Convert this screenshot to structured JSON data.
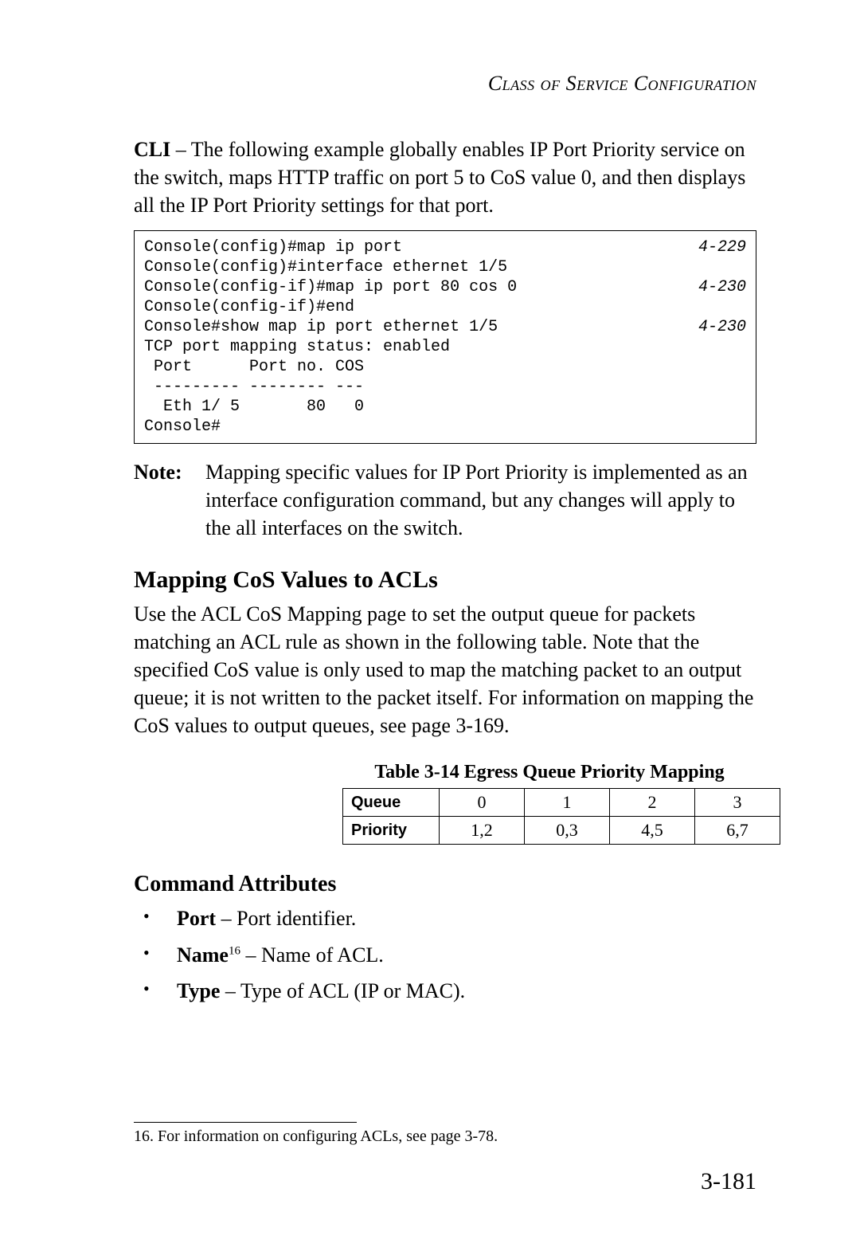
{
  "header": {
    "running_title": "Class of Service Configuration"
  },
  "cli": {
    "label": "CLI",
    "intro": " – The following example globally enables IP Port Priority service on the switch, maps HTTP traffic on port 5 to CoS value 0, and then displays all the IP Port Priority settings for that port."
  },
  "code": {
    "lines": [
      {
        "text": "Console(config)#map ip port",
        "ref": "4-229"
      },
      {
        "text": "Console(config)#interface ethernet 1/5",
        "ref": ""
      },
      {
        "text": "Console(config-if)#map ip port 80 cos 0",
        "ref": "4-230"
      },
      {
        "text": "Console(config-if)#end",
        "ref": ""
      },
      {
        "text": "Console#show map ip port ethernet 1/5",
        "ref": "4-230"
      },
      {
        "text": "TCP port mapping status: enabled",
        "ref": ""
      },
      {
        "text": "",
        "ref": ""
      },
      {
        "text": " Port      Port no. COS",
        "ref": ""
      },
      {
        "text": " --------- -------- ---",
        "ref": ""
      },
      {
        "text": "  Eth 1/ 5       80   0",
        "ref": ""
      },
      {
        "text": "Console#",
        "ref": ""
      }
    ]
  },
  "note": {
    "label": "Note:",
    "text": "Mapping specific values for IP Port Priority is implemented as an interface configuration command, but any changes will apply to the all interfaces on the switch."
  },
  "section": {
    "title": "Mapping CoS Values to ACLs",
    "text": "Use the ACL CoS Mapping page to set the output queue for packets matching an ACL rule as shown in the following table. Note that the specified CoS value is only used to map the matching packet to an output queue; it is not written to the packet itself. For information on mapping the CoS values to output queues, see page 3-169."
  },
  "table": {
    "caption": "Table 3-14  Egress Queue Priority Mapping",
    "row1_label": "Queue",
    "row1": [
      "0",
      "1",
      "2",
      "3"
    ],
    "row2_label": "Priority",
    "row2": [
      "1,2",
      "0,3",
      "4,5",
      "6,7"
    ]
  },
  "attrs": {
    "title": "Command Attributes",
    "items": [
      {
        "name": "Port",
        "sup": "",
        "desc": " – Port identifier."
      },
      {
        "name": "Name",
        "sup": "16",
        "desc": " – Name of ACL."
      },
      {
        "name": "Type",
        "sup": "",
        "desc": " – Type of ACL (IP or MAC)."
      }
    ]
  },
  "footnote": {
    "num": "16.",
    "text": " For information on configuring ACLs, see page 3-78."
  },
  "page_number": "3-181"
}
